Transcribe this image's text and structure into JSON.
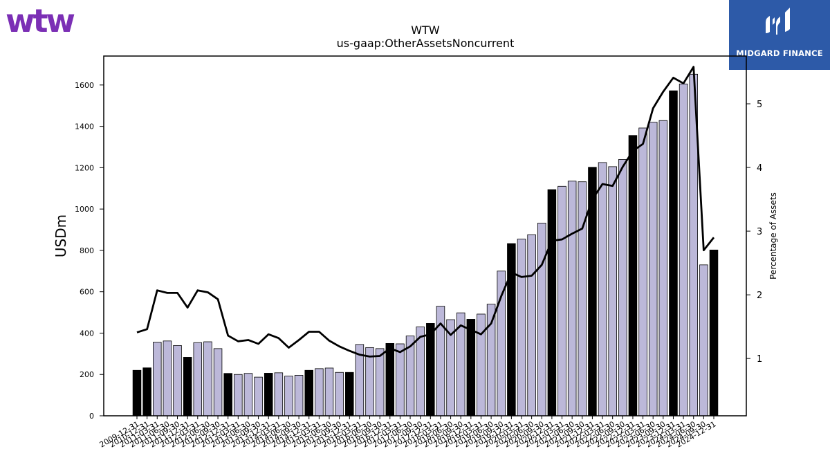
{
  "brand": {
    "left_logo_text": "wtw",
    "left_logo_color": "#7b2fb5",
    "right_logo_text": "MIDGARD FINANCE",
    "right_logo_bg": "#2d5aa8"
  },
  "chart_data": {
    "type": "bar",
    "title": "WTW",
    "subtitle": "us-gaap:OtherAssetsNoncurrent",
    "ylabel": "USDm",
    "y2label": "Percentage of Assets",
    "ylim": [
      0,
      1740
    ],
    "y2lim": [
      0.1,
      5.75
    ],
    "yticks": [
      0,
      200,
      400,
      600,
      800,
      1000,
      1200,
      1400,
      1600
    ],
    "y2ticks": [
      1,
      2,
      3,
      4,
      5
    ],
    "grid": false,
    "legend": "none",
    "colors": {
      "bar_annual": "#000000",
      "bar_quarterly": "#bcb8d9",
      "bar_edge": "#000000",
      "line": "#000000"
    },
    "categories": [
      "2009-12-31",
      "2010-12-31",
      "2011-03-31",
      "2011-06-30",
      "2011-09-30",
      "2011-12-31",
      "2012-03-31",
      "2012-06-30",
      "2012-09-30",
      "2012-12-31",
      "2013-03-31",
      "2013-06-30",
      "2013-09-30",
      "2013-12-31",
      "2014-03-31",
      "2014-06-30",
      "2014-09-30",
      "2014-12-31",
      "2015-03-31",
      "2015-06-30",
      "2015-09-30",
      "2015-12-31",
      "2016-03-31",
      "2016-06-30",
      "2016-09-30",
      "2016-12-31",
      "2017-03-31",
      "2017-06-30",
      "2017-09-30",
      "2017-12-31",
      "2018-03-31",
      "2018-06-30",
      "2018-09-30",
      "2018-12-31",
      "2019-03-31",
      "2019-06-30",
      "2019-09-30",
      "2019-12-31",
      "2020-03-31",
      "2020-06-30",
      "2020-09-30",
      "2020-12-31",
      "2021-03-31",
      "2021-06-30",
      "2021-09-30",
      "2021-12-31",
      "2022-03-31",
      "2022-06-30",
      "2022-09-30",
      "2022-12-31",
      "2023-03-31",
      "2023-06-30",
      "2023-09-30",
      "2023-12-31",
      "2024-03-31",
      "2024-06-30",
      "2024-09-30",
      "2024-12-31"
    ],
    "annual": [
      true,
      true,
      false,
      false,
      false,
      true,
      false,
      false,
      false,
      true,
      false,
      false,
      false,
      true,
      false,
      false,
      false,
      true,
      false,
      false,
      false,
      true,
      false,
      false,
      false,
      true,
      false,
      false,
      false,
      true,
      false,
      false,
      false,
      true,
      false,
      false,
      false,
      true,
      false,
      false,
      false,
      true,
      false,
      false,
      false,
      true,
      false,
      false,
      false,
      true,
      false,
      false,
      false,
      true,
      false,
      false,
      false,
      true
    ],
    "series": [
      {
        "type": "bar",
        "axis": "left",
        "values": [
          220,
          232,
          356,
          362,
          340,
          283,
          354,
          358,
          325,
          205,
          200,
          205,
          187,
          206,
          208,
          192,
          196,
          220,
          228,
          231,
          210,
          210,
          345,
          330,
          325,
          350,
          348,
          386,
          430,
          447,
          530,
          465,
          498,
          467,
          492,
          540,
          700,
          833,
          855,
          876,
          932,
          1094,
          1110,
          1135,
          1132,
          1202,
          1225,
          1205,
          1240,
          1356,
          1392,
          1420,
          1428,
          1572,
          1605,
          1652,
          730,
          802
        ]
      },
      {
        "type": "line",
        "axis": "right",
        "values": [
          1.41,
          1.46,
          2.07,
          2.03,
          2.03,
          1.8,
          2.07,
          2.04,
          1.93,
          1.36,
          1.27,
          1.29,
          1.23,
          1.38,
          1.32,
          1.17,
          1.29,
          1.42,
          1.42,
          1.28,
          1.19,
          1.12,
          1.06,
          1.03,
          1.04,
          1.16,
          1.1,
          1.19,
          1.34,
          1.38,
          1.55,
          1.37,
          1.52,
          1.45,
          1.38,
          1.55,
          1.98,
          2.35,
          2.28,
          2.3,
          2.47,
          2.85,
          2.87,
          2.96,
          3.04,
          3.5,
          3.74,
          3.71,
          4.01,
          4.26,
          4.37,
          4.93,
          5.19,
          5.41,
          5.32,
          5.58,
          2.7,
          2.9
        ]
      }
    ]
  }
}
